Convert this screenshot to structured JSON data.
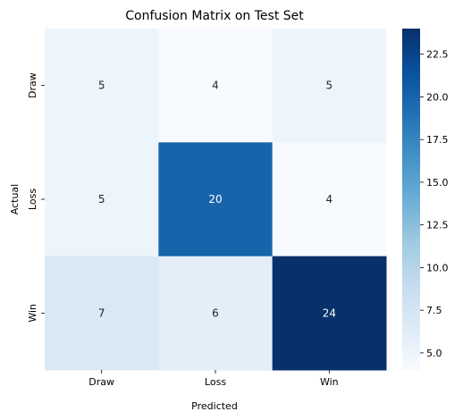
{
  "chart_data": {
    "type": "heatmap",
    "title": "Confusion Matrix on Test Set",
    "xlabel": "Predicted",
    "ylabel": "Actual",
    "x_categories": [
      "Draw",
      "Loss",
      "Win"
    ],
    "y_categories": [
      "Draw",
      "Loss",
      "Win"
    ],
    "values": [
      [
        5,
        4,
        5
      ],
      [
        5,
        20,
        4
      ],
      [
        7,
        6,
        24
      ]
    ],
    "colorbar": {
      "range": [
        4,
        24
      ],
      "ticks": [
        5.0,
        7.5,
        10.0,
        12.5,
        15.0,
        17.5,
        20.0,
        22.5
      ],
      "tick_labels": [
        "5.0",
        "7.5",
        "10.0",
        "12.5",
        "15.0",
        "17.5",
        "20.0",
        "22.5"
      ]
    },
    "colormap": "Blues",
    "colormap_stops": [
      "#f7fbff",
      "#deebf7",
      "#c6dbef",
      "#9ecae1",
      "#6baed6",
      "#4292c6",
      "#2171b5",
      "#08519c",
      "#08306b"
    ]
  }
}
